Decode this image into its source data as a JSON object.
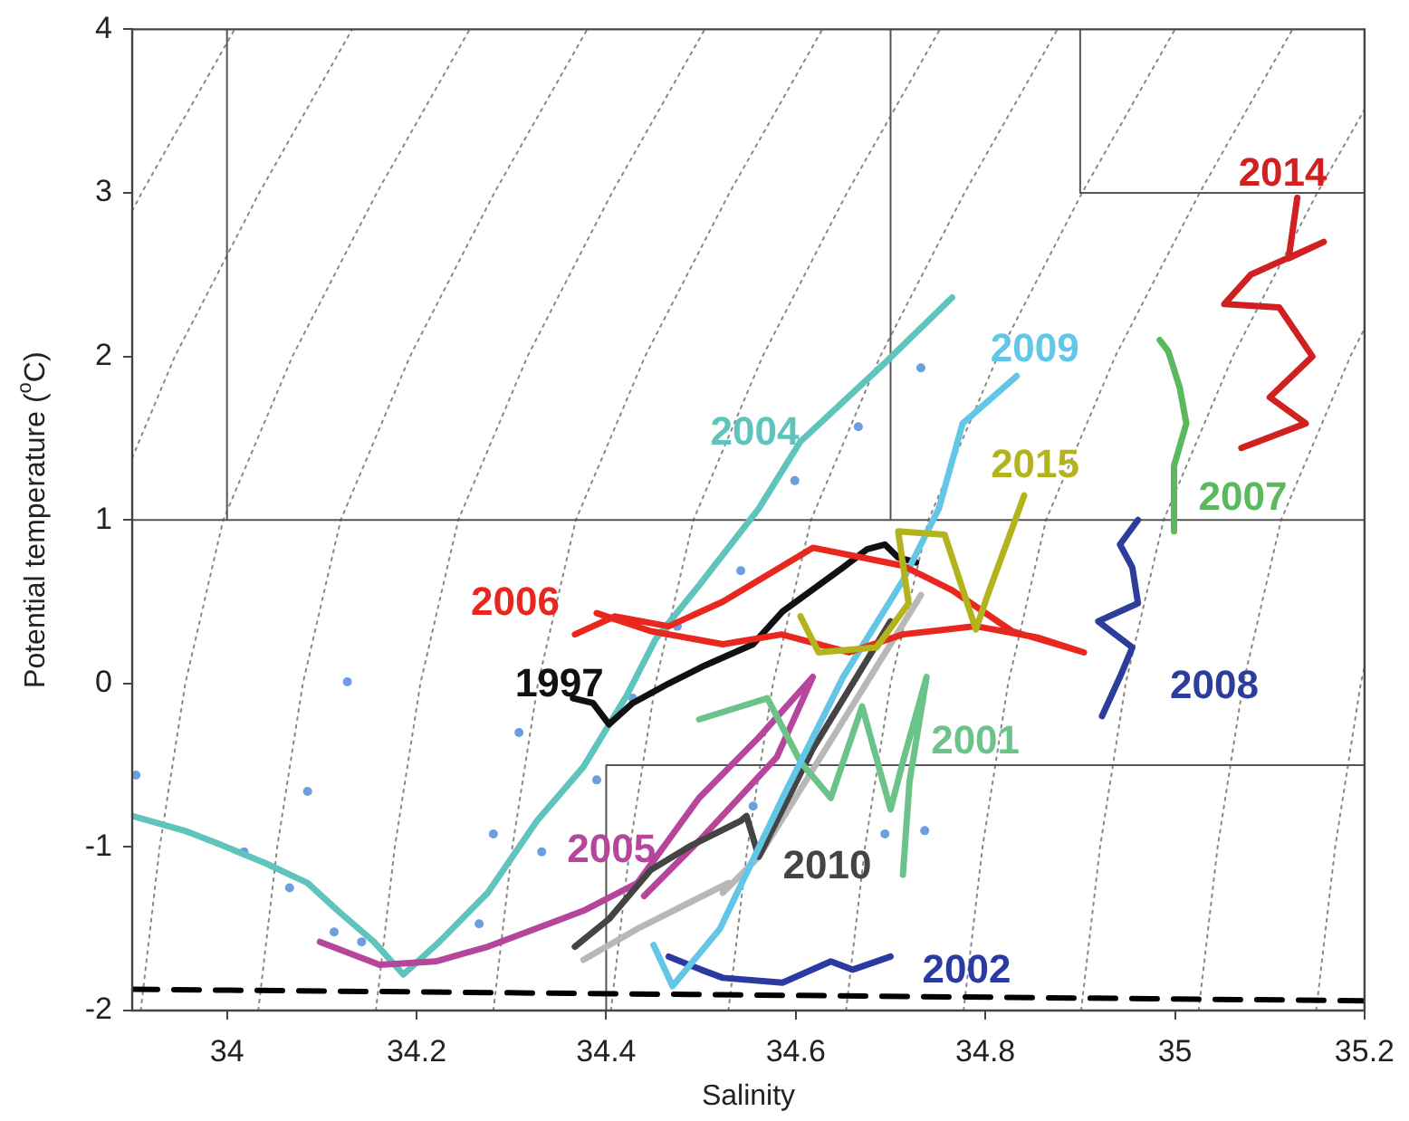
{
  "chart_data": {
    "type": "line",
    "xlabel": "Salinity",
    "ylabel": "Potential temperature ($^{o}$C)",
    "xlim": [
      33.9,
      35.2
    ],
    "ylim": [
      -2,
      4
    ],
    "xticks": [
      34,
      34.2,
      34.4,
      34.6,
      34.8,
      35,
      35.2
    ],
    "yticks": [
      -2,
      -1,
      0,
      1,
      2,
      3,
      4
    ],
    "grid": false,
    "legend": false,
    "series": [
      {
        "color": "#888888",
        "line_style": "dotted",
        "x": [
          33.9,
          33.91,
          34.008
        ],
        "values": [
          2.89,
          3,
          4
        ]
      },
      {
        "color": "#888888",
        "line_style": "dotted",
        "x": [
          33.9,
          33.945,
          34.034,
          34.132
        ],
        "values": [
          1.38,
          2,
          3,
          4
        ]
      },
      {
        "color": "#888888",
        "line_style": "dotted",
        "x": [
          33.909,
          33.929,
          33.956,
          33.996,
          34.069,
          34.158,
          34.256
        ],
        "values": [
          -2,
          -1,
          0,
          1,
          2,
          3,
          4
        ]
      },
      {
        "color": "#888888",
        "line_style": "dotted",
        "x": [
          34.033,
          34.053,
          34.08,
          34.12,
          34.193,
          34.282,
          34.38
        ],
        "values": [
          -2,
          -1,
          0,
          1,
          2,
          3,
          4
        ]
      },
      {
        "color": "#888888",
        "line_style": "dotted",
        "x": [
          34.157,
          34.177,
          34.204,
          34.244,
          34.317,
          34.406,
          34.504
        ],
        "values": [
          -2,
          -1,
          0,
          1,
          2,
          3,
          4
        ]
      },
      {
        "color": "#888888",
        "line_style": "dotted",
        "x": [
          34.281,
          34.301,
          34.328,
          34.368,
          34.441,
          34.53,
          34.628
        ],
        "values": [
          -2,
          -1,
          0,
          1,
          2,
          3,
          4
        ]
      },
      {
        "color": "#888888",
        "line_style": "dotted",
        "x": [
          34.405,
          34.425,
          34.452,
          34.492,
          34.565,
          34.654,
          34.752
        ],
        "values": [
          -2,
          -1,
          0,
          1,
          2,
          3,
          4
        ]
      },
      {
        "color": "#888888",
        "line_style": "dotted",
        "x": [
          34.529,
          34.549,
          34.576,
          34.616,
          34.689,
          34.778,
          34.876
        ],
        "values": [
          -2,
          -1,
          0,
          1,
          2,
          3,
          4
        ]
      },
      {
        "color": "#888888",
        "line_style": "dotted",
        "x": [
          34.653,
          34.673,
          34.7,
          34.74,
          34.813,
          34.902,
          35.0
        ],
        "values": [
          -2,
          -1,
          0,
          1,
          2,
          3,
          4
        ]
      },
      {
        "color": "#888888",
        "line_style": "dotted",
        "x": [
          34.777,
          34.797,
          34.824,
          34.864,
          34.937,
          35.026,
          35.124
        ],
        "values": [
          -2,
          -1,
          0,
          1,
          2,
          3,
          4
        ]
      },
      {
        "color": "#888888",
        "line_style": "dotted",
        "x": [
          34.901,
          34.921,
          34.948,
          34.988,
          35.061,
          35.15,
          35.2
        ],
        "values": [
          -2,
          -1,
          0,
          1,
          2,
          3,
          3.51
        ]
      },
      {
        "color": "#888888",
        "line_style": "dotted",
        "x": [
          35.025,
          35.045,
          35.072,
          35.112,
          35.185,
          35.2
        ],
        "values": [
          -2,
          -1,
          0,
          1,
          2,
          2.17
        ]
      },
      {
        "color": "#888888",
        "line_style": "dotted",
        "x": [
          35.149,
          35.169,
          35.196,
          35.2
        ],
        "values": [
          -2,
          -1,
          0,
          0.1
        ]
      },
      {
        "color": "#555555",
        "line_style": "solid",
        "x": [
          34,
          34
        ],
        "values": [
          1,
          4
        ]
      },
      {
        "color": "#555555",
        "line_style": "solid",
        "x": [
          34.7,
          34.7
        ],
        "values": [
          1,
          4
        ]
      },
      {
        "color": "#555555",
        "line_style": "solid",
        "x": [
          33.9,
          35.2
        ],
        "values": [
          1,
          1
        ]
      },
      {
        "color": "#555555",
        "line_style": "solid",
        "x": [
          34.9,
          34.9,
          35.2
        ],
        "values": [
          4,
          3,
          3
        ]
      },
      {
        "color": "#555555",
        "line_style": "solid",
        "x": [
          34.4,
          34.4,
          35.2
        ],
        "values": [
          -2,
          -0.5,
          -0.5
        ]
      },
      {
        "color": "#000000",
        "line_style": "dashed",
        "x": [
          33.9,
          35.2
        ],
        "values": [
          -1.87,
          -1.94
        ]
      },
      {
        "type": "scatter",
        "color": "#6b9fe0",
        "x": [
          33.904,
          34.018,
          34.085,
          34.066,
          34.113,
          34.142,
          34.281,
          34.127,
          34.308,
          34.266,
          34.332,
          34.39,
          34.428,
          34.475,
          34.542,
          34.599,
          34.666,
          34.732,
          34.555,
          34.694,
          34.736
        ],
        "values": [
          -0.56,
          -1.03,
          -0.66,
          -1.25,
          -1.52,
          -1.58,
          -0.92,
          0.01,
          -0.3,
          -1.47,
          -1.03,
          -0.59,
          -0.09,
          0.35,
          0.69,
          1.24,
          1.57,
          1.93,
          -0.75,
          -0.92,
          -0.9
        ]
      },
      {
        "color": "#b8b8b8",
        "x": [
          34.376,
          34.433,
          34.529,
          34.523,
          34.561,
          34.732
        ],
        "values": [
          -1.69,
          -1.5,
          -1.22,
          -1.28,
          -1.06,
          0.54
        ]
      },
      {
        "name": "2004",
        "color": "#5ec4bc",
        "x": [
          33.9,
          33.955,
          33.995,
          34.041,
          34.085,
          34.117,
          34.155,
          34.186,
          34.224,
          34.275,
          34.327,
          34.376,
          34.422,
          34.452,
          34.498,
          34.561,
          34.605,
          34.694,
          34.765
        ],
        "values": [
          -0.81,
          -0.9,
          -0.99,
          -1.1,
          -1.22,
          -1.39,
          -1.58,
          -1.78,
          -1.58,
          -1.28,
          -0.84,
          -0.51,
          -0.07,
          0.27,
          0.6,
          1.07,
          1.48,
          1.96,
          2.36
        ]
      },
      {
        "name": "2005",
        "color": "#b5469c",
        "x": [
          34.098,
          34.161,
          34.22,
          34.275,
          34.376,
          34.433,
          34.498,
          34.561,
          34.618,
          34.58,
          34.5,
          34.44
        ],
        "values": [
          -1.58,
          -1.72,
          -1.7,
          -1.61,
          -1.39,
          -1.22,
          -0.7,
          -0.33,
          0.04,
          -0.45,
          -0.95,
          -1.3
        ]
      },
      {
        "name": "2010",
        "color": "#444444",
        "x": [
          34.367,
          34.403,
          34.447,
          34.49,
          34.542,
          34.548,
          34.561,
          34.618,
          34.7
        ],
        "values": [
          -1.61,
          -1.44,
          -1.14,
          -0.99,
          -0.84,
          -0.81,
          -1.06,
          -0.4,
          0.38
        ]
      },
      {
        "name": "2002",
        "color": "#2a3aa0",
        "x": [
          34.466,
          34.5,
          34.523,
          34.586,
          34.637,
          34.66,
          34.7
        ],
        "values": [
          -1.67,
          -1.75,
          -1.8,
          -1.83,
          -1.7,
          -1.75,
          -1.67
        ]
      },
      {
        "name": "2001",
        "color": "#6cc38a",
        "x": [
          34.498,
          34.57,
          34.605,
          34.637,
          34.67,
          34.7,
          34.713,
          34.738,
          34.72,
          34.713
        ],
        "values": [
          -0.22,
          -0.09,
          -0.48,
          -0.7,
          -0.14,
          -0.77,
          -0.48,
          0.04,
          -0.6,
          -1.17
        ]
      },
      {
        "name": "1997",
        "color": "#111111",
        "x": [
          34.365,
          34.386,
          34.403,
          34.428,
          34.466,
          34.504,
          34.555,
          34.586,
          34.65,
          34.675,
          34.694,
          34.708,
          34.727
        ],
        "values": [
          -0.09,
          -0.12,
          -0.25,
          -0.12,
          0,
          0.11,
          0.24,
          0.44,
          0.71,
          0.82,
          0.85,
          0.77,
          0.74
        ]
      },
      {
        "name": "2009",
        "color": "#62c6e6",
        "x": [
          34.45,
          34.47,
          34.52,
          34.586,
          34.65,
          34.713,
          34.751,
          34.776,
          34.833
        ],
        "values": [
          -1.6,
          -1.85,
          -1.5,
          -0.7,
          0.04,
          0.63,
          1.07,
          1.59,
          1.88
        ]
      },
      {
        "name": "2006",
        "color": "#e8281e",
        "x": [
          34.367,
          34.409,
          34.466,
          34.523,
          34.618,
          34.713,
          34.765,
          34.828,
          34.904,
          34.856,
          34.79,
          34.713,
          34.656,
          34.585,
          34.523,
          34.447,
          34.39
        ],
        "values": [
          0.3,
          0.41,
          0.35,
          0.5,
          0.83,
          0.72,
          0.57,
          0.32,
          0.19,
          0.28,
          0.35,
          0.3,
          0.19,
          0.3,
          0.24,
          0.32,
          0.43
        ]
      },
      {
        "name": "2015",
        "color": "#b3b31e",
        "x": [
          34.605,
          34.624,
          34.685,
          34.719,
          34.708,
          34.757,
          34.79,
          34.803,
          34.822,
          34.841
        ],
        "values": [
          0.41,
          0.19,
          0.22,
          0.49,
          0.93,
          0.91,
          0.33,
          0.55,
          0.85,
          1.15
        ]
      },
      {
        "name": "2008",
        "color": "#2d3d9c",
        "x": [
          34.961,
          34.942,
          34.955,
          34.961,
          34.919,
          34.955,
          34.942,
          34.923
        ],
        "values": [
          1.0,
          0.85,
          0.71,
          0.49,
          0.38,
          0.22,
          0.04,
          -0.2
        ]
      },
      {
        "name": "2007",
        "color": "#5cb85c",
        "x": [
          34.984,
          34.993,
          35.005,
          35.012,
          34.999,
          34.999
        ],
        "values": [
          2.1,
          2.03,
          1.81,
          1.59,
          1.33,
          0.93
        ]
      },
      {
        "name": "2014",
        "color": "#d02020",
        "x": [
          35.07,
          35.138,
          35.1,
          35.145,
          35.11,
          35.052,
          35.08,
          35.157,
          35.12,
          35.129
        ],
        "values": [
          1.44,
          1.59,
          1.75,
          2.0,
          2.3,
          2.32,
          2.5,
          2.7,
          2.6,
          2.97
        ]
      }
    ]
  }
}
